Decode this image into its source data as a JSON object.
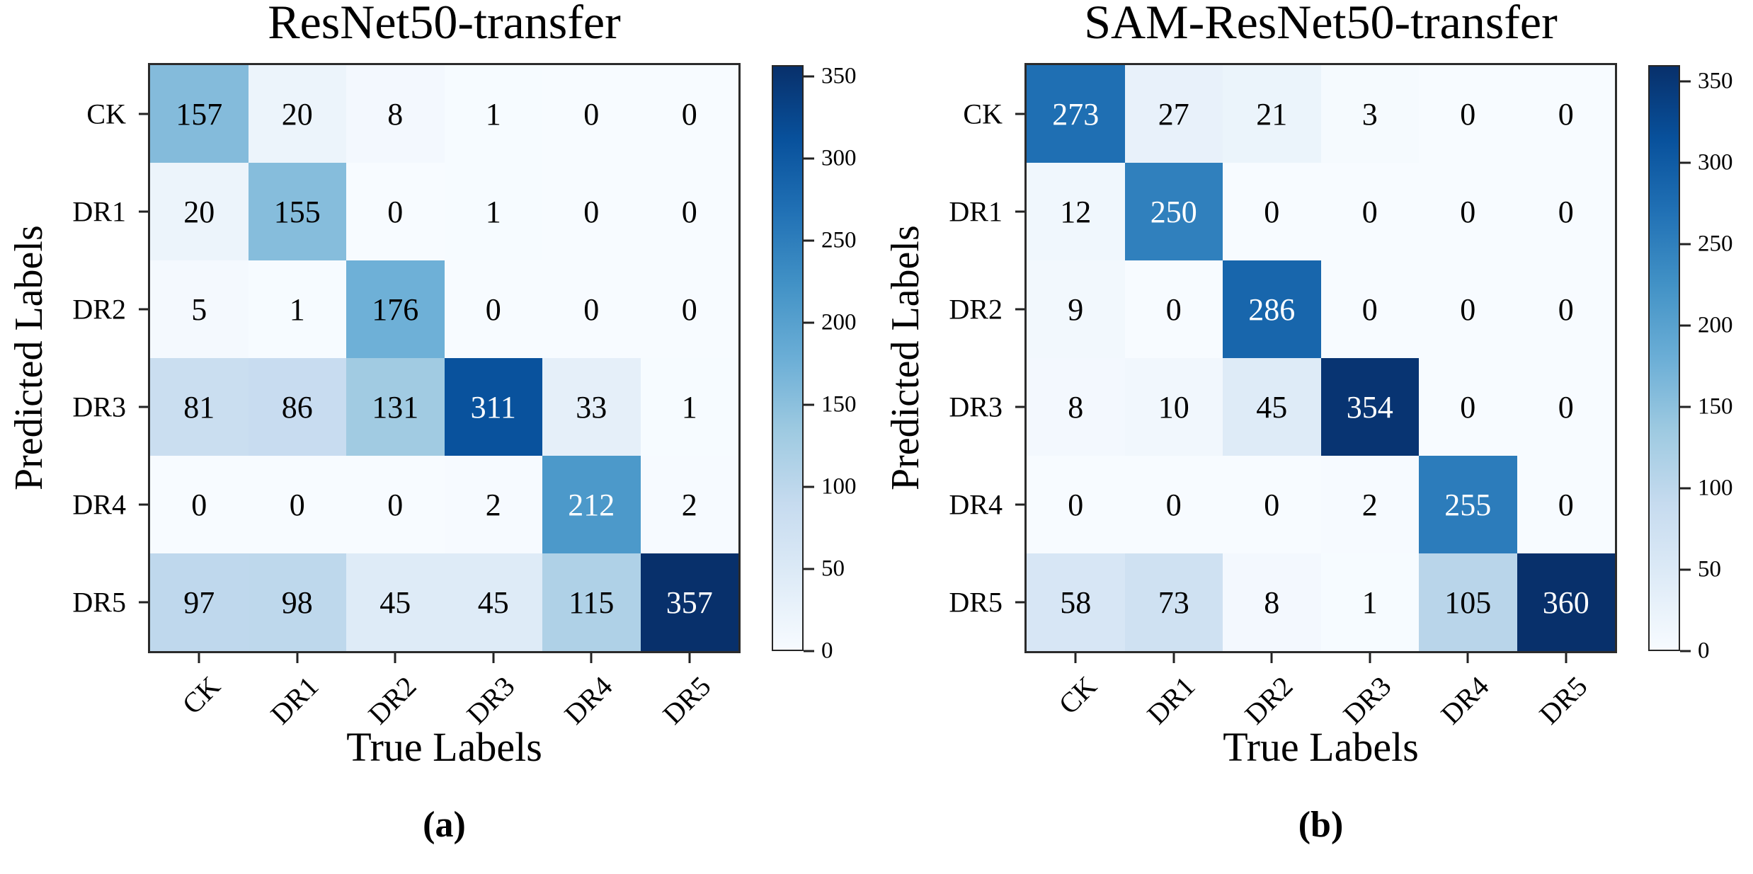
{
  "colormap": {
    "name": "Blues",
    "stops": [
      "#f7fbff",
      "#deebf7",
      "#c6dbef",
      "#9ecae1",
      "#6baed6",
      "#4292c6",
      "#2171b5",
      "#08519c",
      "#08306b"
    ]
  },
  "cell_text_colors": {
    "dark": "#000000",
    "light": "#ffffff"
  },
  "chart_data": [
    {
      "type": "heatmap",
      "title": "ResNet50-transfer",
      "caption": "(a)",
      "xlabel": "True Labels",
      "ylabel": "Predicted Labels",
      "x_tick_labels": [
        "CK",
        "DR1",
        "DR2",
        "DR3",
        "DR4",
        "DR5"
      ],
      "y_tick_labels": [
        "CK",
        "DR1",
        "DR2",
        "DR3",
        "DR4",
        "DR5"
      ],
      "matrix": [
        [
          157,
          20,
          8,
          1,
          0,
          0
        ],
        [
          20,
          155,
          0,
          1,
          0,
          0
        ],
        [
          5,
          1,
          176,
          0,
          0,
          0
        ],
        [
          81,
          86,
          131,
          311,
          33,
          1
        ],
        [
          0,
          0,
          0,
          2,
          212,
          2
        ],
        [
          97,
          98,
          45,
          45,
          115,
          357
        ]
      ],
      "vmin": 0,
      "vmax": 357,
      "colorbar_ticks": [
        0,
        50,
        100,
        150,
        200,
        250,
        300,
        350
      ],
      "colorbar_position": "right",
      "grid": false
    },
    {
      "type": "heatmap",
      "title": "SAM-ResNet50-transfer",
      "caption": "(b)",
      "xlabel": "True Labels",
      "ylabel": "Predicted Labels",
      "x_tick_labels": [
        "CK",
        "DR1",
        "DR2",
        "DR3",
        "DR4",
        "DR5"
      ],
      "y_tick_labels": [
        "CK",
        "DR1",
        "DR2",
        "DR3",
        "DR4",
        "DR5"
      ],
      "matrix": [
        [
          273,
          27,
          21,
          3,
          0,
          0
        ],
        [
          12,
          250,
          0,
          0,
          0,
          0
        ],
        [
          9,
          0,
          286,
          0,
          0,
          0
        ],
        [
          8,
          10,
          45,
          354,
          0,
          0
        ],
        [
          0,
          0,
          0,
          2,
          255,
          0
        ],
        [
          58,
          73,
          8,
          1,
          105,
          360
        ]
      ],
      "vmin": 0,
      "vmax": 360,
      "colorbar_ticks": [
        0,
        50,
        100,
        150,
        200,
        250,
        300,
        350
      ],
      "colorbar_position": "right",
      "grid": false
    }
  ]
}
